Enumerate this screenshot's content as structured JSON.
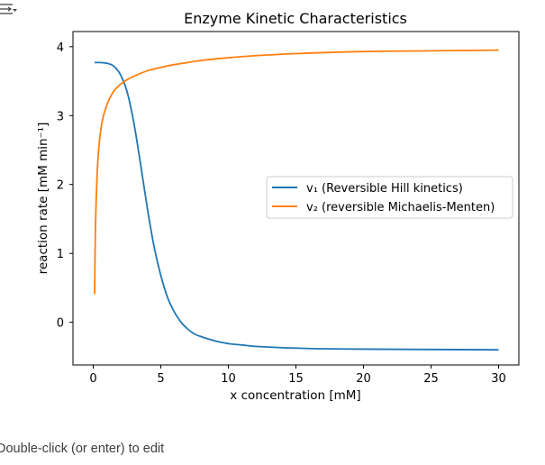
{
  "notebook": {
    "edit_hint": "Double-click (or enter) to edit",
    "toggle_icon": "form-toggle-icon"
  },
  "chart_data": {
    "type": "line",
    "title": "Enzyme Kinetic Characteristics",
    "xlabel": "x concentration [mM]",
    "ylabel": "reaction rate [mM min⁻¹]",
    "xlim": [
      -1.5,
      31.5
    ],
    "ylim": [
      -0.62,
      4.22
    ],
    "x_ticks": [
      0,
      5,
      10,
      15,
      20,
      25,
      30
    ],
    "y_ticks": [
      0,
      1,
      2,
      3,
      4
    ],
    "grid": false,
    "legend_position": "center-right",
    "series": [
      {
        "name": "v₁ (Reversible Hill kinetics)",
        "color": "#1f77b4",
        "x": [
          0.1,
          0.5,
          1,
          1.5,
          2,
          2.5,
          3,
          3.5,
          4,
          4.5,
          5,
          5.5,
          6,
          6.5,
          7,
          7.5,
          8,
          9,
          10,
          11,
          12,
          13,
          14,
          15,
          17,
          20,
          25,
          30
        ],
        "y": [
          3.77,
          3.77,
          3.76,
          3.72,
          3.6,
          3.35,
          2.9,
          2.3,
          1.66,
          1.1,
          0.68,
          0.36,
          0.15,
          0.0,
          -0.1,
          -0.17,
          -0.21,
          -0.27,
          -0.31,
          -0.33,
          -0.35,
          -0.36,
          -0.37,
          -0.375,
          -0.385,
          -0.39,
          -0.395,
          -0.4
        ]
      },
      {
        "name": "v₂ (reversible Michaelis-Menten)",
        "color": "#ff7f0e",
        "x": [
          0.1,
          0.15,
          0.2,
          0.3,
          0.4,
          0.5,
          0.7,
          1,
          1.5,
          2,
          2.5,
          3,
          4,
          5,
          6,
          7,
          8,
          10,
          12,
          15,
          20,
          25,
          30
        ],
        "y": [
          0.41,
          1.2,
          1.65,
          2.2,
          2.5,
          2.7,
          2.95,
          3.15,
          3.35,
          3.45,
          3.52,
          3.57,
          3.65,
          3.7,
          3.74,
          3.77,
          3.8,
          3.84,
          3.87,
          3.9,
          3.93,
          3.94,
          3.95
        ]
      }
    ]
  }
}
